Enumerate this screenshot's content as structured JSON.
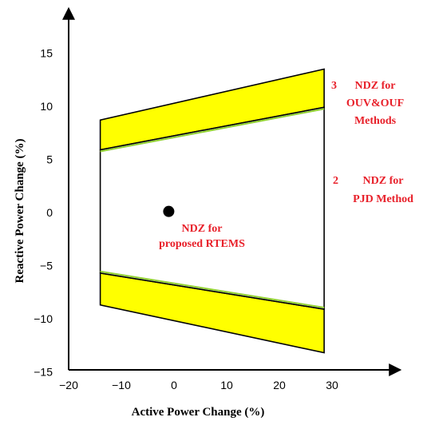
{
  "chart_data": {
    "type": "area",
    "xlabel": "Active Power Change (%)",
    "ylabel": "Reactive Power Change (%)",
    "xlim": [
      -20,
      30
    ],
    "ylim": [
      -15,
      15
    ],
    "x_ticks": [
      -20,
      -10,
      0,
      10,
      20,
      30
    ],
    "y_ticks": [
      15,
      10,
      5,
      0,
      -5,
      -10,
      -15
    ],
    "grid": false,
    "colors": {
      "band_fill": "#ffff00",
      "band_edge": "#90d030",
      "outline": "#000000",
      "annotation": "#e8202a"
    },
    "regions": [
      {
        "label": "upper band",
        "polygon": [
          [
            -14,
            8.7
          ],
          [
            28.5,
            13.5
          ],
          [
            28.5,
            9.9
          ],
          [
            -14,
            5.9
          ]
        ]
      },
      {
        "label": "lower band",
        "polygon": [
          [
            -14,
            -5.7
          ],
          [
            28.5,
            -9.1
          ],
          [
            28.5,
            -13.2
          ],
          [
            -14,
            -8.7
          ]
        ]
      },
      {
        "label": "inner region",
        "polygon": [
          [
            -14,
            5.9
          ],
          [
            28.5,
            9.9
          ],
          [
            28.5,
            -9.1
          ],
          [
            -14,
            -5.7
          ]
        ]
      }
    ],
    "point": {
      "x": -1,
      "y": 0.1
    },
    "annotations": [
      {
        "number": "3",
        "lines": [
          "NDZ for",
          "OUV&OUF",
          "Methods"
        ]
      },
      {
        "number": "2",
        "lines": [
          "NDZ for",
          "PJD Method"
        ]
      },
      {
        "number": "",
        "lines": [
          "NDZ for",
          "proposed RTEMS"
        ]
      }
    ]
  }
}
